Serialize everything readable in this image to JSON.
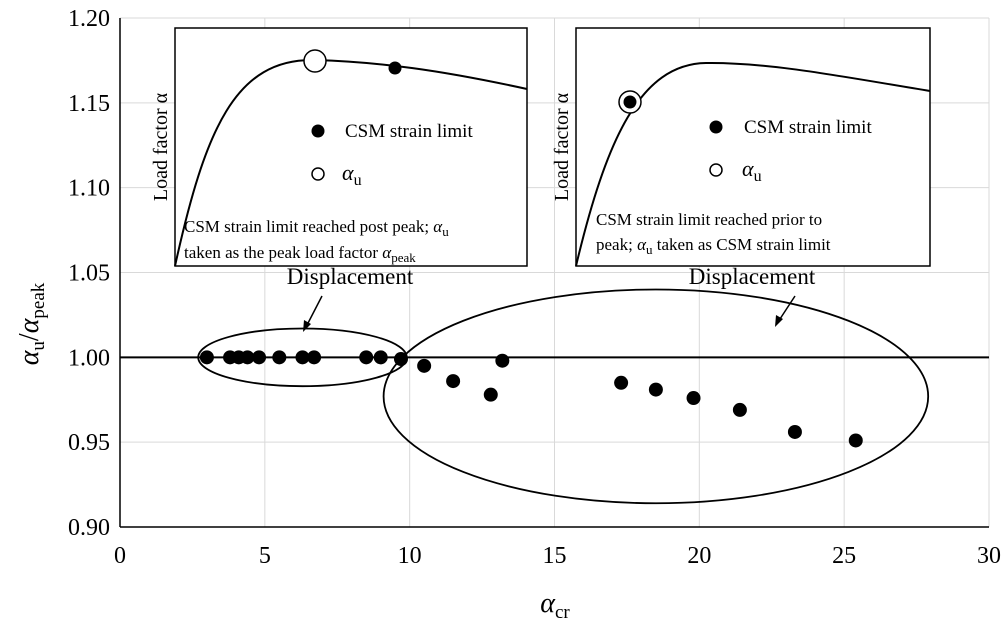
{
  "chart_data": {
    "type": "scatter",
    "title": "",
    "xlabel": {
      "main": "α",
      "sub": "cr"
    },
    "ylabel": {
      "num_main": "α",
      "num_sub": "u",
      "den_main": "α",
      "den_sub": "peak"
    },
    "xlim": [
      0,
      30
    ],
    "ylim": [
      0.9,
      1.2
    ],
    "xticks": [
      0,
      5,
      10,
      15,
      20,
      25,
      30
    ],
    "yticks": [
      0.9,
      0.95,
      1.0,
      1.05,
      1.1,
      1.15,
      1.2
    ],
    "xtick_labels": [
      "0",
      "5",
      "10",
      "15",
      "20",
      "25",
      "30"
    ],
    "ytick_labels": [
      "0.90",
      "0.95",
      "1.00",
      "1.05",
      "1.10",
      "1.15",
      "1.20"
    ],
    "grid": true,
    "reference_line_y": 1.0,
    "series": [
      {
        "points": [
          {
            "x": 3.0,
            "y": 1.0
          },
          {
            "x": 3.8,
            "y": 1.0
          },
          {
            "x": 4.1,
            "y": 1.0
          },
          {
            "x": 4.4,
            "y": 1.0
          },
          {
            "x": 4.8,
            "y": 1.0
          },
          {
            "x": 5.5,
            "y": 1.0
          },
          {
            "x": 6.3,
            "y": 1.0
          },
          {
            "x": 6.7,
            "y": 1.0
          },
          {
            "x": 8.5,
            "y": 1.0
          },
          {
            "x": 9.0,
            "y": 1.0
          },
          {
            "x": 9.7,
            "y": 0.999
          },
          {
            "x": 10.5,
            "y": 0.995
          },
          {
            "x": 11.5,
            "y": 0.986
          },
          {
            "x": 12.8,
            "y": 0.978
          },
          {
            "x": 13.2,
            "y": 0.998
          },
          {
            "x": 17.3,
            "y": 0.985
          },
          {
            "x": 18.5,
            "y": 0.981
          },
          {
            "x": 19.8,
            "y": 0.976
          },
          {
            "x": 21.4,
            "y": 0.969
          },
          {
            "x": 23.3,
            "y": 0.956
          },
          {
            "x": 25.4,
            "y": 0.951
          }
        ],
        "color": "#000000"
      }
    ],
    "ellipse_groups": [
      {
        "cx": 6.3,
        "cy": 1.0,
        "rx": 3.6,
        "ry": 0.017
      },
      {
        "cx": 18.5,
        "cy": 0.977,
        "rx": 9.4,
        "ry": 0.063
      }
    ]
  },
  "insets": [
    {
      "ylabel": "Load factor α",
      "legend_filled": "CSM strain limit",
      "legend_open_main": "α",
      "legend_open_sub": "u",
      "caption_line1_text": "CSM strain limit reached post peak; ",
      "caption_line1_alpha": "α",
      "caption_line1_sub": "u",
      "caption_line2_text": "taken as the peak load factor ",
      "caption_line2_alpha": "α",
      "caption_line2_sub": "peak",
      "xlabel": "Displacement"
    },
    {
      "ylabel": "Load factor α",
      "legend_filled": "CSM strain limit",
      "legend_open_main": "α",
      "legend_open_sub": "u",
      "caption_line1_text": "CSM strain limit reached prior to",
      "caption_line2_pre": "peak; ",
      "caption_line2_alpha": "α",
      "caption_line2_sub": "u",
      "caption_line2_text": " taken as CSM strain limit",
      "xlabel": "Displacement"
    }
  ]
}
